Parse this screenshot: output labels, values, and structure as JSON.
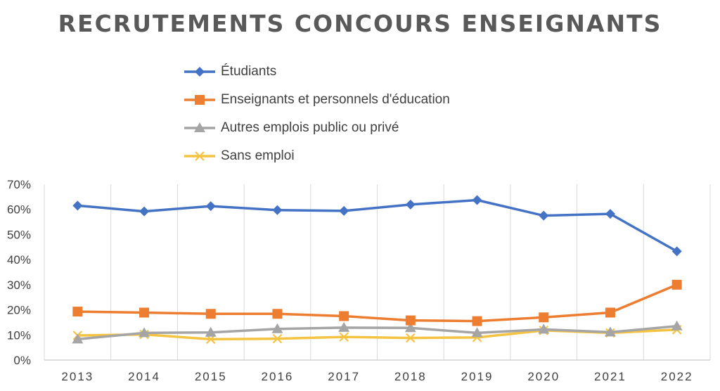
{
  "chart_data": {
    "type": "line",
    "title": "RECRUTEMENTS CONCOURS ENSEIGNANTS",
    "xlabel": "",
    "ylabel": "",
    "categories": [
      "2013",
      "2014",
      "2015",
      "2016",
      "2017",
      "2018",
      "2019",
      "2020",
      "2021",
      "2022"
    ],
    "ylim": [
      0,
      70
    ],
    "yticks": [
      "0%",
      "10%",
      "20%",
      "30%",
      "40%",
      "50%",
      "60%",
      "70%"
    ],
    "grid": "vertical",
    "legend_position": "top",
    "series": [
      {
        "name": "Étudiants",
        "color": "#4472C4",
        "marker": "diamond",
        "values": [
          61.5,
          59.2,
          61.3,
          59.7,
          59.4,
          61.9,
          63.7,
          57.5,
          58.2,
          43.3
        ]
      },
      {
        "name": "Enseignants et personnels d'éducation",
        "color": "#ED7D31",
        "marker": "square",
        "values": [
          19.3,
          18.9,
          18.4,
          18.4,
          17.5,
          15.8,
          15.5,
          17.0,
          18.9,
          30.0
        ]
      },
      {
        "name": "Autres emplois public ou privé",
        "color": "#A5A5A5",
        "marker": "triangle",
        "values": [
          8.3,
          10.8,
          11.0,
          12.4,
          12.9,
          12.8,
          10.8,
          12.2,
          11.1,
          13.5
        ]
      },
      {
        "name": "Sans emploi",
        "color": "#F5C342",
        "marker": "x",
        "values": [
          9.8,
          10.2,
          8.3,
          8.5,
          9.2,
          8.8,
          9.0,
          11.8,
          10.8,
          12.1
        ]
      }
    ]
  }
}
